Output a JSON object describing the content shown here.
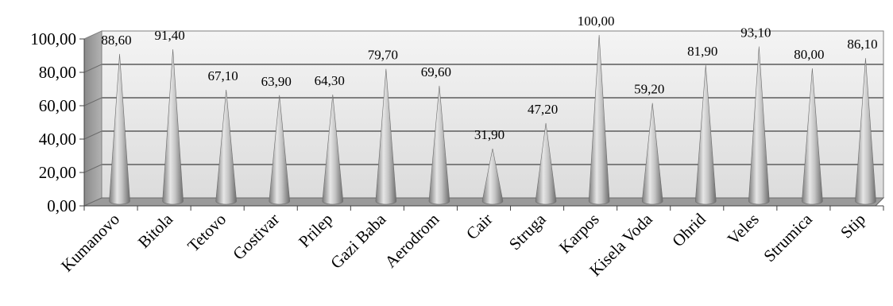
{
  "chart_data": {
    "type": "bar",
    "bar_shape": "cone",
    "three_d": true,
    "categories": [
      "Kumanovo",
      "Bitola",
      "Tetovo",
      "Gostivar",
      "Prilep",
      "Gazi Baba",
      "Aerodrom",
      "Cair",
      "Struga",
      "Karpos",
      "Kisela Voda",
      "Ohrid",
      "Veles",
      "Strumica",
      "Stip"
    ],
    "values": [
      88.6,
      91.4,
      67.1,
      63.9,
      64.3,
      79.7,
      69.6,
      31.9,
      47.2,
      100.0,
      59.2,
      81.9,
      93.1,
      80.0,
      86.1
    ],
    "data_labels": [
      "88,60",
      "91,40",
      "67,10",
      "63,90",
      "64,30",
      "79,70",
      "69,60",
      "31,90",
      "47,20",
      "100,00",
      "59,20",
      "81,90",
      "93,10",
      "80,00",
      "86,10"
    ],
    "y_ticks": [
      0,
      20,
      40,
      60,
      80,
      100
    ],
    "y_tick_labels": [
      "0,00",
      "20,00",
      "40,00",
      "60,00",
      "80,00",
      "100,00"
    ],
    "ylim": [
      0,
      100
    ],
    "grid": true,
    "legend": "none",
    "colors": {
      "cone": "#a6a6a6",
      "wall": "#e8e8e8",
      "floor": "#9a9a9a",
      "gridline": "#7f7f7f"
    }
  }
}
